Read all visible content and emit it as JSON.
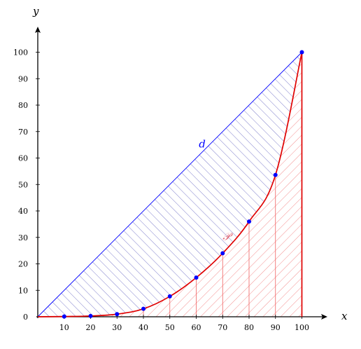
{
  "chart_data": {
    "type": "line",
    "xlabel": "x",
    "ylabel": "y",
    "xlim": [
      0,
      100
    ],
    "ylim": [
      0,
      100
    ],
    "x_ticks": [
      10,
      20,
      30,
      40,
      50,
      60,
      70,
      80,
      90,
      100
    ],
    "y_ticks": [
      0,
      10,
      20,
      30,
      40,
      50,
      60,
      70,
      80,
      90,
      100
    ],
    "x_tick_labels": [
      "10",
      "20",
      "30",
      "40",
      "50",
      "60",
      "70",
      "80",
      "90",
      "100"
    ],
    "y_tick_labels": [
      "0",
      "10",
      "20",
      "30",
      "40",
      "50",
      "60",
      "70",
      "80",
      "90",
      "100"
    ],
    "grid": false,
    "series": [
      {
        "name": "d",
        "color": "#0000ff",
        "x": [
          0,
          100
        ],
        "y": [
          0,
          100
        ]
      },
      {
        "name": "𝒫",
        "color": "#e00000",
        "x": [
          0,
          10,
          20,
          30,
          40,
          50,
          60,
          70,
          80,
          90,
          100
        ],
        "y": [
          0,
          0.1,
          0.3,
          1.0,
          3.0,
          7.7,
          14.8,
          24.0,
          36.0,
          53.6,
          100
        ]
      }
    ],
    "points": {
      "color": "#0000ff",
      "x": [
        10,
        20,
        30,
        40,
        50,
        60,
        70,
        80,
        90,
        100
      ],
      "y": [
        0.1,
        0.3,
        1.0,
        3.0,
        7.7,
        14.8,
        24.0,
        36.0,
        53.6,
        100
      ]
    },
    "annotations": [
      {
        "text": "d",
        "color": "#0000ff",
        "x": 61,
        "y": 64
      },
      {
        "text": "𝒫",
        "color": "#e06070",
        "x": 70,
        "y": 29
      }
    ],
    "hatch": {
      "between_d_and_curve": "#4a4ab8",
      "under_curve": "#f06060"
    }
  }
}
